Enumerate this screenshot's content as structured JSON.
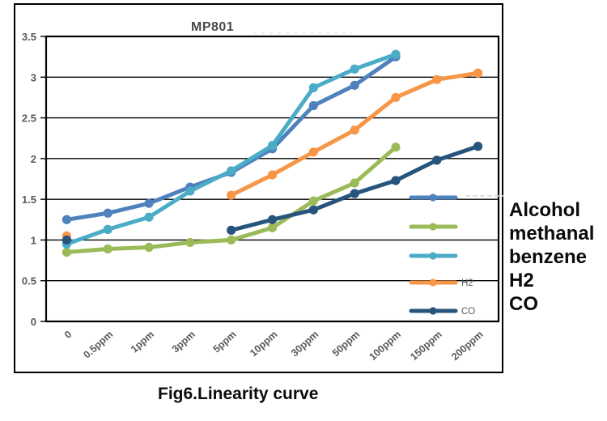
{
  "figure": {
    "caption": "Fig6.Linearity curve"
  },
  "right_panel": {
    "labels": [
      "Alcohol",
      "methanal",
      "benzene",
      "H2",
      "CO"
    ]
  },
  "chart_data": {
    "type": "line",
    "title": "MP801",
    "xlabel": "",
    "ylabel": "",
    "categories": [
      "0",
      "0.5ppm",
      "1ppm",
      "3ppm",
      "5ppm",
      "10ppm",
      "30ppm",
      "50ppm",
      "100ppm",
      "150ppm",
      "200ppm"
    ],
    "ylim": [
      0,
      3.5
    ],
    "y_ticks": [
      3.5,
      3,
      2.5,
      2,
      1.5,
      1,
      0.5,
      0
    ],
    "grid": true,
    "legend": {
      "position": "inside-right",
      "entries": [
        "",
        "",
        "",
        "H2",
        "CO"
      ]
    },
    "series": [
      {
        "name": "Alcohol",
        "color": "#4F81BD",
        "values": [
          1.25,
          1.33,
          1.45,
          1.65,
          1.83,
          2.12,
          2.65,
          2.9,
          3.25,
          null,
          null
        ]
      },
      {
        "name": "methanal",
        "color": "#9BBB59",
        "values": [
          0.85,
          0.89,
          0.91,
          0.97,
          1.0,
          1.15,
          1.48,
          1.7,
          2.14,
          null,
          null
        ]
      },
      {
        "name": "benzene",
        "color": "#4BACC6",
        "values": [
          0.95,
          1.13,
          1.28,
          1.6,
          1.85,
          2.16,
          2.87,
          3.1,
          3.28,
          null,
          null
        ]
      },
      {
        "name": "H2",
        "color": "#F79646",
        "values": [
          1.05,
          null,
          null,
          null,
          1.55,
          1.8,
          2.08,
          2.35,
          2.75,
          2.97,
          3.05
        ]
      },
      {
        "name": "CO",
        "color": "#26547C",
        "values": [
          1.0,
          null,
          null,
          null,
          1.12,
          1.25,
          1.37,
          1.57,
          1.73,
          1.98,
          2.15
        ]
      }
    ]
  }
}
